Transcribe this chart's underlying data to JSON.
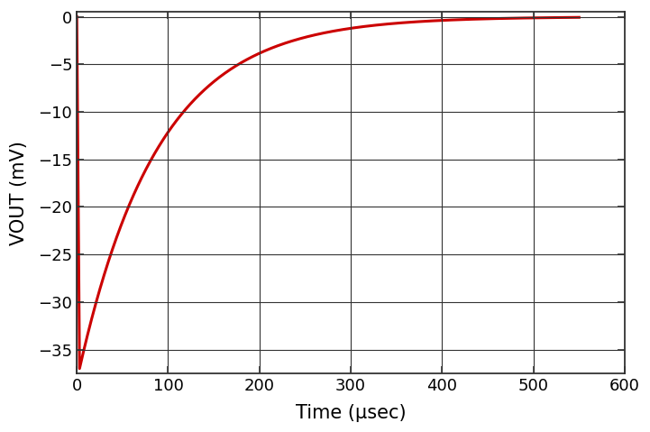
{
  "title": "",
  "xlabel": "Time (μsec)",
  "ylabel": "VOUT (mV)",
  "xlim": [
    0,
    600
  ],
  "ylim": [
    -37.5,
    0.5
  ],
  "xticks": [
    0,
    100,
    200,
    300,
    400,
    500,
    600
  ],
  "yticks": [
    0,
    -5,
    -10,
    -15,
    -20,
    -25,
    -30,
    -35
  ],
  "line_color": "#cc0000",
  "line_width": 2.2,
  "background_color": "#ffffff",
  "grid_color": "#333333",
  "V0": -37.0,
  "tau": 87.0,
  "t_drop_end": 3.0,
  "t_end": 550.0,
  "num_points": 3000,
  "tick_fontsize": 13,
  "label_fontsize": 15
}
